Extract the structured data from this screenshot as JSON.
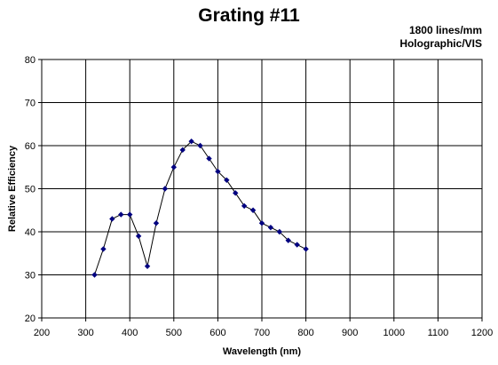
{
  "chart_data": {
    "type": "scatter",
    "title": "Grating #11",
    "subtitle": [
      "1800 lines/mm",
      "Holographic/VIS"
    ],
    "xlabel": "Wavelength (nm)",
    "ylabel": "Relative Efficiency",
    "xlim": [
      200,
      1200
    ],
    "ylim": [
      20,
      80
    ],
    "x_ticks": [
      200,
      300,
      400,
      500,
      600,
      700,
      800,
      900,
      1000,
      1100,
      1200
    ],
    "y_ticks": [
      20,
      30,
      40,
      50,
      60,
      70,
      80
    ],
    "grid": true,
    "legend": "none",
    "marker": "diamond",
    "line": true,
    "color": "#000080",
    "series": [
      {
        "x": [
          320,
          340,
          360,
          380,
          400,
          420,
          440,
          460,
          480,
          500,
          520,
          540,
          560,
          580,
          600,
          620,
          640,
          660,
          680,
          700,
          720,
          740,
          760,
          780,
          800
        ],
        "y": [
          30,
          36,
          43,
          44,
          44,
          39,
          32,
          42,
          50,
          55,
          59,
          61,
          60,
          57,
          54,
          52,
          49,
          46,
          45,
          42,
          41,
          40,
          38,
          37,
          36
        ]
      }
    ]
  }
}
